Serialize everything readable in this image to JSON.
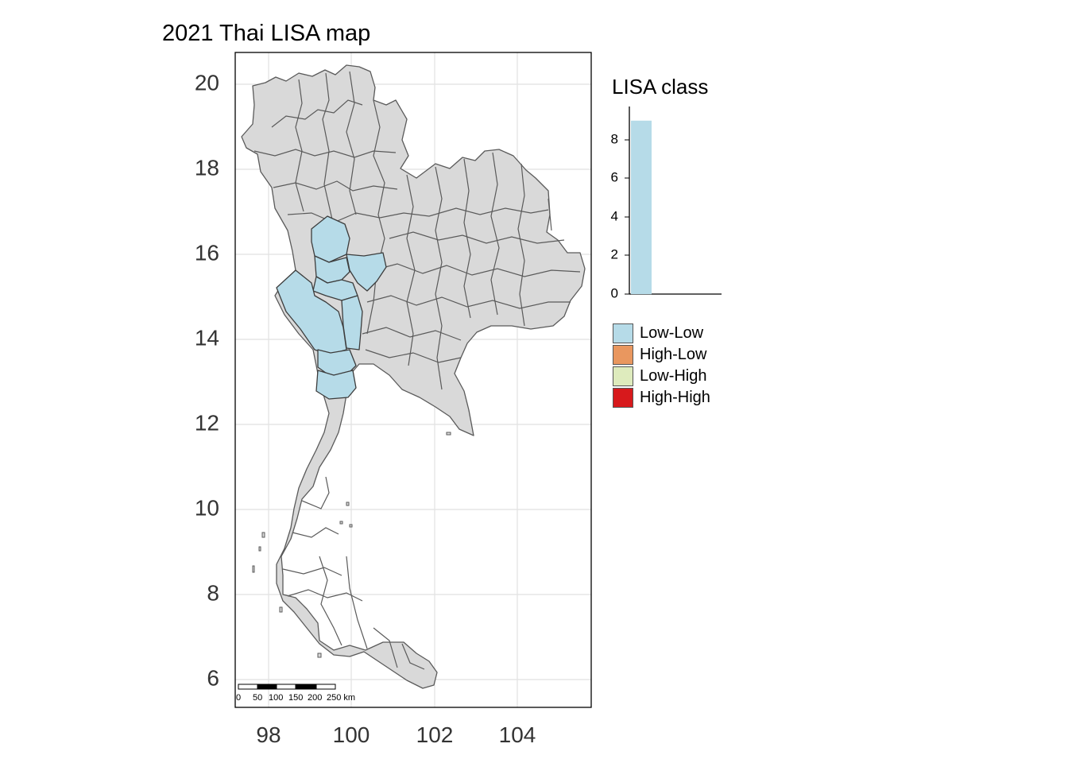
{
  "map": {
    "title": "2021 Thai LISA map",
    "x_ticks": [
      "98",
      "100",
      "102",
      "104"
    ],
    "y_ticks": [
      "20",
      "18",
      "16",
      "14",
      "12",
      "10",
      "8",
      "6"
    ],
    "x_range": [
      97.2,
      105.8
    ],
    "y_range": [
      5.3,
      21.0
    ],
    "colors": {
      "default_fill": "#d9d9d9",
      "low_low": "#b6dbe8",
      "border": "#5a5a5a"
    },
    "scale_bar": {
      "labels": [
        "0",
        "50",
        "100",
        "150",
        "200",
        "250 km"
      ]
    }
  },
  "legend": {
    "title": "LISA class",
    "histogram": {
      "y_ticks": [
        "0",
        "2",
        "4",
        "6",
        "8"
      ],
      "bar_value": 9,
      "y_max": 9.7
    },
    "items": [
      {
        "label": "Low-Low",
        "color": "#b6dbe8"
      },
      {
        "label": "High-Low",
        "color": "#e9975f"
      },
      {
        "label": "Low-High",
        "color": "#deebbd"
      },
      {
        "label": "High-High",
        "color": "#d7191c"
      }
    ]
  }
}
